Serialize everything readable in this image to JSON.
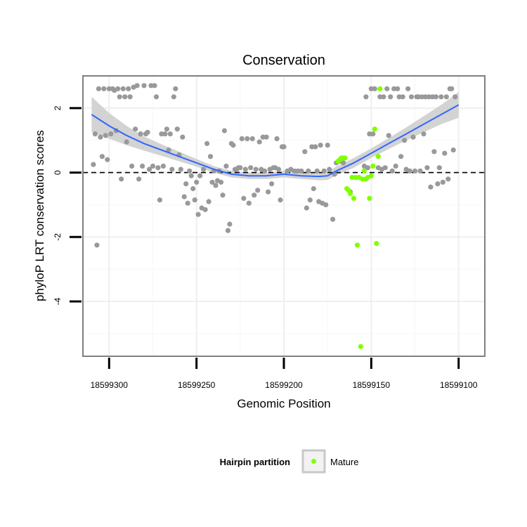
{
  "chart_data": {
    "type": "scatter",
    "title": "Conservation",
    "xlabel": "Genomic Position",
    "ylabel": "phyloP LRT conservation scores",
    "x_reversed": true,
    "xlim": [
      18599315,
      18599085
    ],
    "ylim": [
      -5.7,
      3.0
    ],
    "xticks": [
      {
        "value": 18599300,
        "label": "18599300"
      },
      {
        "value": 18599250,
        "label": "18599250"
      },
      {
        "value": 18599200,
        "label": "18599200"
      },
      {
        "value": 18599150,
        "label": "18599150"
      },
      {
        "value": 18599100,
        "label": "18599100"
      }
    ],
    "yticks": [
      {
        "value": 2,
        "label": "2"
      },
      {
        "value": 0,
        "label": "0"
      },
      {
        "value": -2,
        "label": "-2"
      },
      {
        "value": -4,
        "label": "-4"
      }
    ],
    "grid": true,
    "reference_line": {
      "y": 0,
      "style": "dashed"
    },
    "series": [
      {
        "color": "#999999",
        "points": [
          [
            18599309,
            0.25
          ],
          [
            18599308,
            1.2
          ],
          [
            18599307,
            -2.25
          ],
          [
            18599306,
            2.6
          ],
          [
            18599305,
            1.1
          ],
          [
            18599304,
            0.5
          ],
          [
            18599303,
            2.6
          ],
          [
            18599302,
            1.15
          ],
          [
            18599301,
            0.4
          ],
          [
            18599300,
            2.6
          ],
          [
            18599299,
            1.2
          ],
          [
            18599298,
            2.6
          ],
          [
            18599297,
            2.55
          ],
          [
            18599296,
            1.3
          ],
          [
            18599295,
            2.6
          ],
          [
            18599294,
            2.35
          ],
          [
            18599293,
            -0.2
          ],
          [
            18599292,
            2.6
          ],
          [
            18599291,
            2.35
          ],
          [
            18599290,
            0.95
          ],
          [
            18599289,
            2.6
          ],
          [
            18599288,
            2.35
          ],
          [
            18599287,
            0.2
          ],
          [
            18599286,
            2.65
          ],
          [
            18599285,
            1.35
          ],
          [
            18599284,
            2.7
          ],
          [
            18599283,
            -0.2
          ],
          [
            18599282,
            1.2
          ],
          [
            18599281,
            0.2
          ],
          [
            18599280,
            2.7
          ],
          [
            18599279,
            1.2
          ],
          [
            18599278,
            1.25
          ],
          [
            18599277,
            0.1
          ],
          [
            18599276,
            2.7
          ],
          [
            18599275,
            0.2
          ],
          [
            18599274,
            2.7
          ],
          [
            18599273,
            2.35
          ],
          [
            18599272,
            0.15
          ],
          [
            18599271,
            -0.85
          ],
          [
            18599270,
            1.2
          ],
          [
            18599269,
            0.2
          ],
          [
            18599268,
            1.2
          ],
          [
            18599267,
            1.35
          ],
          [
            18599266,
            0.7
          ],
          [
            18599265,
            1.2
          ],
          [
            18599264,
            0.1
          ],
          [
            18599263,
            2.35
          ],
          [
            18599262,
            2.6
          ],
          [
            18599261,
            1.35
          ],
          [
            18599260,
            0.55
          ],
          [
            18599259,
            0.1
          ],
          [
            18599258,
            1.1
          ],
          [
            18599257,
            -0.75
          ],
          [
            18599256,
            -0.35
          ],
          [
            18599255,
            -0.95
          ],
          [
            18599254,
            0.05
          ],
          [
            18599253,
            -0.1
          ],
          [
            18599252,
            -0.5
          ],
          [
            18599251,
            -0.85
          ],
          [
            18599250,
            -0.3
          ],
          [
            18599249,
            -1.3
          ],
          [
            18599248,
            -0.1
          ],
          [
            18599247,
            -1.1
          ],
          [
            18599246,
            0.1
          ],
          [
            18599245,
            -1.15
          ],
          [
            18599244,
            0.9
          ],
          [
            18599243,
            -0.9
          ],
          [
            18599242,
            0.5
          ],
          [
            18599241,
            -0.3
          ],
          [
            18599240,
            0.05
          ],
          [
            18599239,
            -0.4
          ],
          [
            18599238,
            -0.25
          ],
          [
            18599237,
            0.05
          ],
          [
            18599236,
            -0.3
          ],
          [
            18599235,
            -0.7
          ],
          [
            18599234,
            1.3
          ],
          [
            18599233,
            0.2
          ],
          [
            18599232,
            -1.8
          ],
          [
            18599231,
            -1.6
          ],
          [
            18599230,
            0.9
          ],
          [
            18599229,
            0.85
          ],
          [
            18599228,
            0.1
          ],
          [
            18599227,
            0.1
          ],
          [
            18599226,
            0.15
          ],
          [
            18599225,
            0.15
          ],
          [
            18599224,
            1.05
          ],
          [
            18599223,
            -0.8
          ],
          [
            18599222,
            0.1
          ],
          [
            18599221,
            1.05
          ],
          [
            18599220,
            -0.95
          ],
          [
            18599219,
            0.15
          ],
          [
            18599218,
            1.05
          ],
          [
            18599217,
            -0.7
          ],
          [
            18599216,
            0.1
          ],
          [
            18599215,
            -0.55
          ],
          [
            18599214,
            0.95
          ],
          [
            18599213,
            0.1
          ],
          [
            18599212,
            1.1
          ],
          [
            18599211,
            0.05
          ],
          [
            18599210,
            1.1
          ],
          [
            18599209,
            -0.6
          ],
          [
            18599208,
            0.1
          ],
          [
            18599207,
            -0.35
          ],
          [
            18599206,
            0.15
          ],
          [
            18599205,
            0.15
          ],
          [
            18599204,
            1.05
          ],
          [
            18599203,
            0.1
          ],
          [
            18599202,
            -0.85
          ],
          [
            18599201,
            0.8
          ],
          [
            18599200,
            0.8
          ],
          [
            18599198,
            0.05
          ],
          [
            18599196,
            0.1
          ],
          [
            18599194,
            0.05
          ],
          [
            18599192,
            0.05
          ],
          [
            18599190,
            0.05
          ],
          [
            18599188,
            0.65
          ],
          [
            18599187,
            -1.1
          ],
          [
            18599186,
            0.05
          ],
          [
            18599185,
            -0.85
          ],
          [
            18599184,
            0.8
          ],
          [
            18599183,
            -0.5
          ],
          [
            18599182,
            0.8
          ],
          [
            18599181,
            0.05
          ],
          [
            18599180,
            -0.9
          ],
          [
            18599179,
            0.85
          ],
          [
            18599178,
            -0.95
          ],
          [
            18599177,
            0.05
          ],
          [
            18599176,
            -1.0
          ],
          [
            18599175,
            0.85
          ],
          [
            18599174,
            0.1
          ],
          [
            18599172,
            -1.45
          ],
          [
            18599171,
            -0.05
          ],
          [
            18599170,
            0.3
          ],
          [
            18599168,
            0.35
          ],
          [
            18599166,
            0.3
          ],
          [
            18599162,
            -0.6
          ],
          [
            18599154,
            0.2
          ],
          [
            18599153,
            2.35
          ],
          [
            18599152,
            0.15
          ],
          [
            18599151,
            1.2
          ],
          [
            18599150,
            2.6
          ],
          [
            18599149,
            1.2
          ],
          [
            18599148,
            2.6
          ],
          [
            18599146,
            0.15
          ],
          [
            18599145,
            2.35
          ],
          [
            18599144,
            0.1
          ],
          [
            18599143,
            2.35
          ],
          [
            18599142,
            0.15
          ],
          [
            18599141,
            2.6
          ],
          [
            18599140,
            1.15
          ],
          [
            18599139,
            2.35
          ],
          [
            18599138,
            0.05
          ],
          [
            18599137,
            2.6
          ],
          [
            18599136,
            0.2
          ],
          [
            18599135,
            2.6
          ],
          [
            18599134,
            2.35
          ],
          [
            18599133,
            0.5
          ],
          [
            18599132,
            2.35
          ],
          [
            18599131,
            1.0
          ],
          [
            18599130,
            0.1
          ],
          [
            18599129,
            2.6
          ],
          [
            18599128,
            0.05
          ],
          [
            18599127,
            2.35
          ],
          [
            18599126,
            1.1
          ],
          [
            18599125,
            0.05
          ],
          [
            18599124,
            2.35
          ],
          [
            18599123,
            2.35
          ],
          [
            18599122,
            0.05
          ],
          [
            18599121,
            2.35
          ],
          [
            18599120,
            1.2
          ],
          [
            18599119,
            2.35
          ],
          [
            18599118,
            0.15
          ],
          [
            18599117,
            2.35
          ],
          [
            18599116,
            -0.45
          ],
          [
            18599115,
            2.35
          ],
          [
            18599114,
            0.65
          ],
          [
            18599113,
            2.35
          ],
          [
            18599112,
            -0.35
          ],
          [
            18599111,
            0.15
          ],
          [
            18599110,
            2.35
          ],
          [
            18599109,
            -0.3
          ],
          [
            18599108,
            0.6
          ],
          [
            18599107,
            2.35
          ],
          [
            18599106,
            -0.2
          ],
          [
            18599105,
            2.6
          ],
          [
            18599104,
            2.6
          ],
          [
            18599103,
            0.7
          ],
          [
            18599102,
            2.35
          ]
        ]
      },
      {
        "name": "Mature",
        "color": "#80ff00",
        "points": [
          [
            18599169,
            0.35
          ],
          [
            18599168,
            0.4
          ],
          [
            18599167,
            0.45
          ],
          [
            18599166,
            0.45
          ],
          [
            18599165,
            0.45
          ],
          [
            18599164,
            -0.5
          ],
          [
            18599163,
            -0.55
          ],
          [
            18599162,
            -0.65
          ],
          [
            18599161,
            -0.15
          ],
          [
            18599160,
            -0.8
          ],
          [
            18599159,
            -0.15
          ],
          [
            18599158,
            -2.25
          ],
          [
            18599157,
            -0.15
          ],
          [
            18599156,
            -5.4
          ],
          [
            18599155,
            -0.2
          ],
          [
            18599154,
            0.05
          ],
          [
            18599153,
            -0.2
          ],
          [
            18599152,
            -0.15
          ],
          [
            18599151,
            -0.8
          ],
          [
            18599150,
            -0.1
          ],
          [
            18599149,
            0.2
          ],
          [
            18599148,
            1.35
          ],
          [
            18599147,
            -2.2
          ],
          [
            18599146,
            0.5
          ],
          [
            18599145,
            2.6
          ]
        ]
      }
    ],
    "smooth_line": {
      "color": "#3366ff",
      "band_color": "#d3d3d3",
      "points": [
        [
          18599310,
          1.8
        ],
        [
          18599300,
          1.45
        ],
        [
          18599290,
          1.15
        ],
        [
          18599280,
          0.9
        ],
        [
          18599270,
          0.7
        ],
        [
          18599260,
          0.5
        ],
        [
          18599250,
          0.3
        ],
        [
          18599240,
          0.1
        ],
        [
          18599230,
          -0.05
        ],
        [
          18599220,
          -0.1
        ],
        [
          18599210,
          -0.1
        ],
        [
          18599200,
          -0.05
        ],
        [
          18599190,
          -0.1
        ],
        [
          18599180,
          -0.12
        ],
        [
          18599175,
          -0.1
        ],
        [
          18599170,
          0.05
        ],
        [
          18599160,
          0.3
        ],
        [
          18599150,
          0.6
        ],
        [
          18599140,
          0.9
        ],
        [
          18599130,
          1.2
        ],
        [
          18599120,
          1.5
        ],
        [
          18599110,
          1.8
        ],
        [
          18599100,
          2.1
        ]
      ],
      "band_halfwidth": [
        0.55,
        0.4,
        0.3,
        0.22,
        0.18,
        0.15,
        0.12,
        0.1,
        0.1,
        0.1,
        0.1,
        0.1,
        0.1,
        0.12,
        0.13,
        0.14,
        0.15,
        0.15,
        0.17,
        0.2,
        0.25,
        0.3,
        0.4
      ]
    },
    "legend": {
      "title": "Hairpin partition",
      "position": "bottom",
      "entries": [
        {
          "label": "Mature",
          "color": "#80ff00"
        }
      ]
    }
  }
}
